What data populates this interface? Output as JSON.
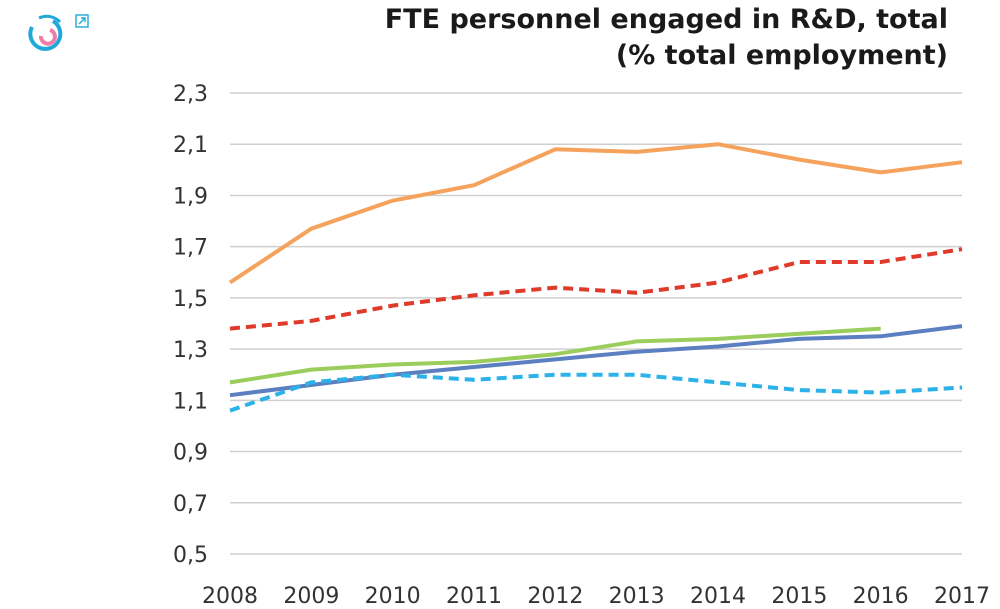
{
  "title_line1": "FTE personnel engaged in R&D, total",
  "title_line2": "(% total employment)",
  "logo_icon": "circular-arrows-logo-icon",
  "external_link_icon": "external-link-icon",
  "chart_data": {
    "type": "line",
    "title": "FTE personnel engaged in R&D, total (% total employment)",
    "x": [
      "2008",
      "2009",
      "2010",
      "2011",
      "2012",
      "2013",
      "2014",
      "2015",
      "2016",
      "2017"
    ],
    "y_ticks": [
      "2,3",
      "2,1",
      "1,9",
      "1,7",
      "1,5",
      "1,3",
      "1,1",
      "0,9",
      "0,7",
      "0,5"
    ],
    "ylim": [
      0.5,
      2.3
    ],
    "grid": "horizontal",
    "series": [
      {
        "color": "#F5A25D",
        "style": "solid",
        "values": [
          1.56,
          1.77,
          1.88,
          1.94,
          2.08,
          2.07,
          2.1,
          2.04,
          1.99,
          2.03
        ]
      },
      {
        "color": "#E03A2A",
        "style": "dashed",
        "values": [
          1.38,
          1.41,
          1.47,
          1.51,
          1.54,
          1.52,
          1.56,
          1.64,
          1.64,
          1.69
        ]
      },
      {
        "color": "#9ACD5C",
        "style": "solid",
        "values": [
          1.17,
          1.22,
          1.24,
          1.25,
          1.28,
          1.33,
          1.34,
          1.36,
          1.38,
          null
        ]
      },
      {
        "color": "#5B7FC0",
        "style": "solid",
        "values": [
          1.12,
          1.16,
          1.2,
          1.23,
          1.26,
          1.29,
          1.31,
          1.34,
          1.35,
          1.39
        ]
      },
      {
        "color": "#2BB2E8",
        "style": "dashed",
        "values": [
          1.06,
          1.17,
          1.2,
          1.18,
          1.2,
          1.2,
          1.17,
          1.14,
          1.13,
          1.15
        ]
      }
    ]
  }
}
